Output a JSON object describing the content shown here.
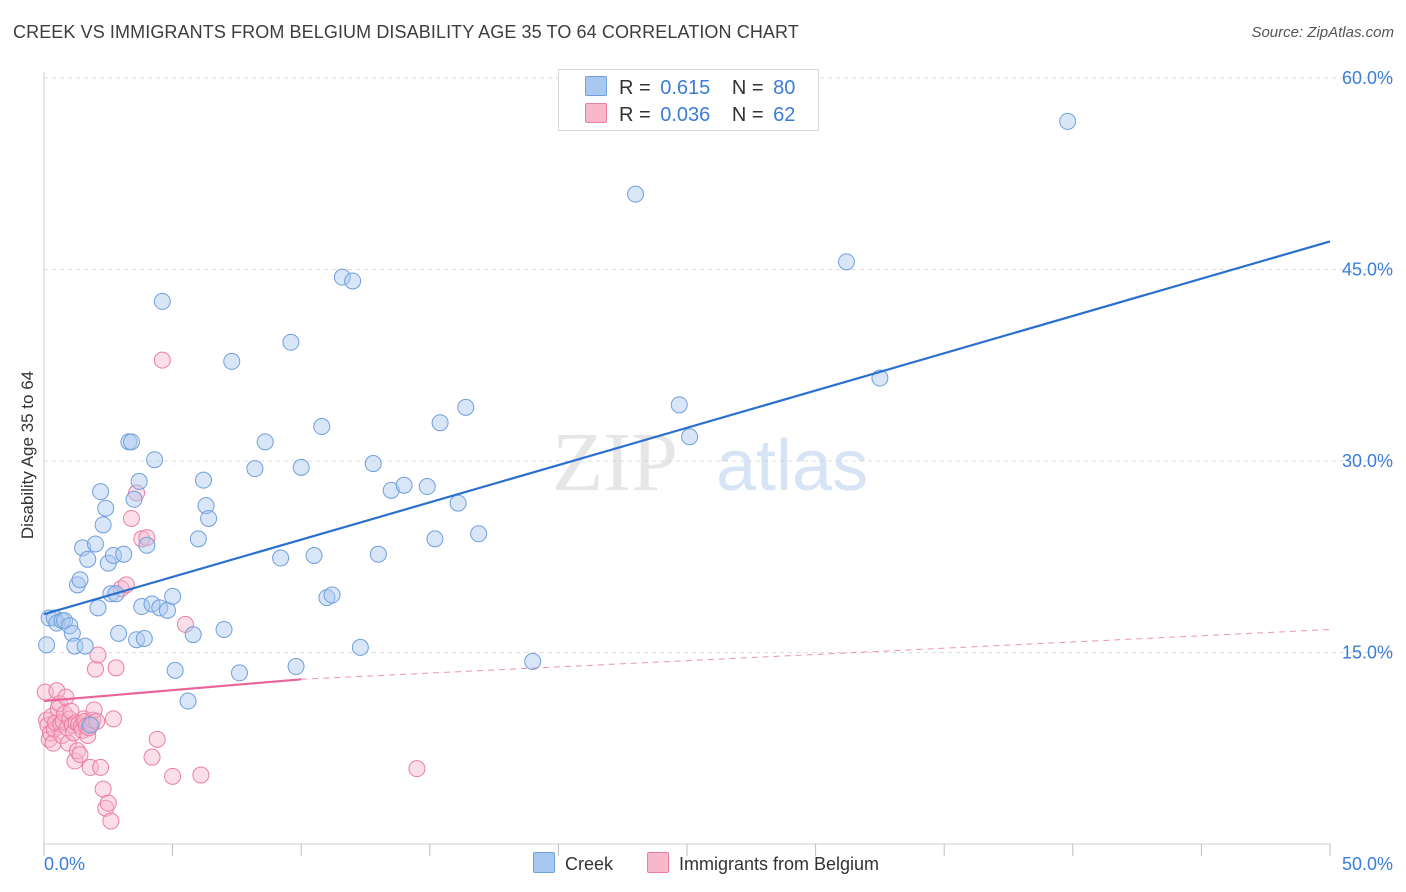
{
  "header": {
    "title": "CREEK VS IMMIGRANTS FROM BELGIUM DISABILITY AGE 35 TO 64 CORRELATION CHART",
    "source": "Source: ZipAtlas.com"
  },
  "watermark": {
    "part1": "ZIP",
    "part2": "atlas"
  },
  "legend": {
    "rows": [
      {
        "r_label": "R =",
        "r_value": "0.615",
        "n_label": "N =",
        "n_value": "80"
      },
      {
        "r_label": "R =",
        "r_value": "0.036",
        "n_label": "N =",
        "n_value": "62"
      }
    ]
  },
  "bottom_legend": {
    "series1": "Creek",
    "series2": "Immigrants from Belgium"
  },
  "colors": {
    "creek_fill": "#a8c8f0",
    "creek_stroke": "#6f9fdc",
    "creek_line": "#2b6fcf",
    "belgium_fill": "#f7b8cc",
    "belgium_stroke": "#ec7ea2",
    "belgium_line": "#e8649a",
    "axis_text": "#3b7dd8",
    "grid": "#dddddd"
  },
  "chart_data": {
    "type": "scatter",
    "title": "CREEK VS IMMIGRANTS FROM BELGIUM DISABILITY AGE 35 TO 64 CORRELATION CHART",
    "xlabel": "",
    "ylabel": "Disability Age 35 to 64",
    "xlim": [
      0,
      50
    ],
    "ylim": [
      0,
      60
    ],
    "x_tick_labels": [
      "0.0%",
      "50.0%"
    ],
    "y_ticks": [
      15,
      30,
      45,
      60
    ],
    "y_tick_labels": [
      "15.0%",
      "30.0%",
      "45.0%",
      "60.0%"
    ],
    "series": [
      {
        "name": "Creek",
        "R": 0.615,
        "N": 80,
        "trend": {
          "x": [
            0,
            50
          ],
          "y": [
            18.0,
            47.2
          ],
          "style": "solid"
        },
        "points": [
          [
            0.1,
            15.6
          ],
          [
            0.2,
            17.7
          ],
          [
            0.4,
            17.7
          ],
          [
            0.5,
            17.3
          ],
          [
            0.7,
            17.5
          ],
          [
            0.8,
            17.5
          ],
          [
            1.0,
            17.1
          ],
          [
            1.1,
            16.5
          ],
          [
            1.2,
            15.5
          ],
          [
            1.3,
            20.3
          ],
          [
            1.4,
            20.7
          ],
          [
            1.5,
            23.2
          ],
          [
            1.6,
            15.5
          ],
          [
            1.7,
            22.3
          ],
          [
            1.8,
            9.3
          ],
          [
            2.0,
            23.5
          ],
          [
            2.1,
            18.5
          ],
          [
            2.2,
            27.6
          ],
          [
            2.3,
            25.0
          ],
          [
            2.4,
            26.3
          ],
          [
            2.5,
            22.0
          ],
          [
            2.6,
            19.6
          ],
          [
            2.7,
            22.6
          ],
          [
            2.8,
            19.6
          ],
          [
            2.9,
            16.5
          ],
          [
            3.1,
            22.7
          ],
          [
            3.3,
            31.5
          ],
          [
            3.4,
            31.5
          ],
          [
            3.5,
            27.0
          ],
          [
            3.6,
            16.0
          ],
          [
            3.7,
            28.4
          ],
          [
            3.8,
            18.6
          ],
          [
            3.9,
            16.1
          ],
          [
            4.0,
            23.4
          ],
          [
            4.2,
            18.8
          ],
          [
            4.3,
            30.1
          ],
          [
            4.5,
            18.5
          ],
          [
            4.6,
            42.5
          ],
          [
            4.8,
            18.3
          ],
          [
            5.0,
            19.4
          ],
          [
            5.1,
            13.6
          ],
          [
            5.6,
            11.2
          ],
          [
            5.8,
            16.4
          ],
          [
            6.0,
            23.9
          ],
          [
            6.2,
            28.5
          ],
          [
            6.3,
            26.5
          ],
          [
            6.4,
            25.5
          ],
          [
            7.0,
            16.8
          ],
          [
            7.3,
            37.8
          ],
          [
            7.6,
            13.4
          ],
          [
            8.2,
            29.4
          ],
          [
            8.6,
            31.5
          ],
          [
            9.2,
            22.4
          ],
          [
            9.6,
            39.3
          ],
          [
            9.8,
            13.9
          ],
          [
            10.0,
            29.5
          ],
          [
            10.5,
            22.6
          ],
          [
            10.8,
            32.7
          ],
          [
            11.0,
            19.3
          ],
          [
            11.2,
            19.5
          ],
          [
            11.6,
            44.4
          ],
          [
            12.0,
            44.1
          ],
          [
            12.3,
            15.4
          ],
          [
            12.8,
            29.8
          ],
          [
            13.0,
            22.7
          ],
          [
            13.5,
            27.7
          ],
          [
            14.0,
            28.1
          ],
          [
            14.9,
            28.0
          ],
          [
            15.2,
            23.9
          ],
          [
            15.4,
            33.0
          ],
          [
            16.1,
            26.7
          ],
          [
            16.4,
            34.2
          ],
          [
            16.9,
            24.3
          ],
          [
            19.0,
            14.3
          ],
          [
            23.0,
            50.9
          ],
          [
            24.7,
            34.4
          ],
          [
            25.1,
            31.9
          ],
          [
            31.2,
            45.6
          ],
          [
            32.5,
            36.5
          ],
          [
            39.8,
            56.6
          ]
        ]
      },
      {
        "name": "Immigrants from Belgium",
        "R": 0.036,
        "N": 62,
        "trend": {
          "x": [
            0,
            10
          ],
          "y": [
            11.2,
            12.9
          ],
          "style": "solid",
          "extended": {
            "x": [
              10,
              50
            ],
            "y": [
              12.9,
              16.8
            ],
            "style": "dashed"
          }
        },
        "points": [
          [
            0.05,
            11.9
          ],
          [
            0.1,
            9.7
          ],
          [
            0.15,
            9.3
          ],
          [
            0.2,
            8.2
          ],
          [
            0.25,
            8.7
          ],
          [
            0.3,
            10.0
          ],
          [
            0.35,
            7.9
          ],
          [
            0.4,
            9.0
          ],
          [
            0.45,
            9.5
          ],
          [
            0.5,
            12.0
          ],
          [
            0.55,
            10.6
          ],
          [
            0.6,
            11.0
          ],
          [
            0.65,
            9.4
          ],
          [
            0.7,
            8.5
          ],
          [
            0.75,
            9.6
          ],
          [
            0.8,
            10.2
          ],
          [
            0.85,
            11.5
          ],
          [
            0.9,
            9.1
          ],
          [
            0.95,
            7.9
          ],
          [
            1.0,
            9.8
          ],
          [
            1.05,
            10.4
          ],
          [
            1.1,
            9.3
          ],
          [
            1.15,
            8.7
          ],
          [
            1.2,
            6.5
          ],
          [
            1.25,
            9.5
          ],
          [
            1.3,
            7.3
          ],
          [
            1.35,
            9.4
          ],
          [
            1.4,
            7.0
          ],
          [
            1.45,
            9.2
          ],
          [
            1.5,
            8.9
          ],
          [
            1.55,
            9.8
          ],
          [
            1.6,
            9.6
          ],
          [
            1.65,
            9.2
          ],
          [
            1.7,
            8.5
          ],
          [
            1.75,
            9.1
          ],
          [
            1.8,
            6.0
          ],
          [
            1.85,
            9.4
          ],
          [
            1.9,
            9.7
          ],
          [
            1.95,
            10.5
          ],
          [
            2.0,
            13.7
          ],
          [
            2.05,
            9.6
          ],
          [
            2.1,
            14.8
          ],
          [
            2.2,
            6.0
          ],
          [
            2.3,
            4.3
          ],
          [
            2.4,
            2.8
          ],
          [
            2.5,
            3.2
          ],
          [
            2.6,
            1.8
          ],
          [
            2.7,
            9.8
          ],
          [
            2.8,
            13.8
          ],
          [
            3.0,
            20.0
          ],
          [
            3.2,
            20.3
          ],
          [
            3.4,
            25.5
          ],
          [
            3.6,
            27.5
          ],
          [
            3.8,
            23.9
          ],
          [
            4.0,
            24.0
          ],
          [
            4.2,
            6.8
          ],
          [
            4.4,
            8.2
          ],
          [
            4.6,
            37.9
          ],
          [
            5.0,
            5.3
          ],
          [
            5.5,
            17.2
          ],
          [
            6.1,
            5.4
          ],
          [
            14.5,
            5.9
          ]
        ]
      }
    ]
  }
}
